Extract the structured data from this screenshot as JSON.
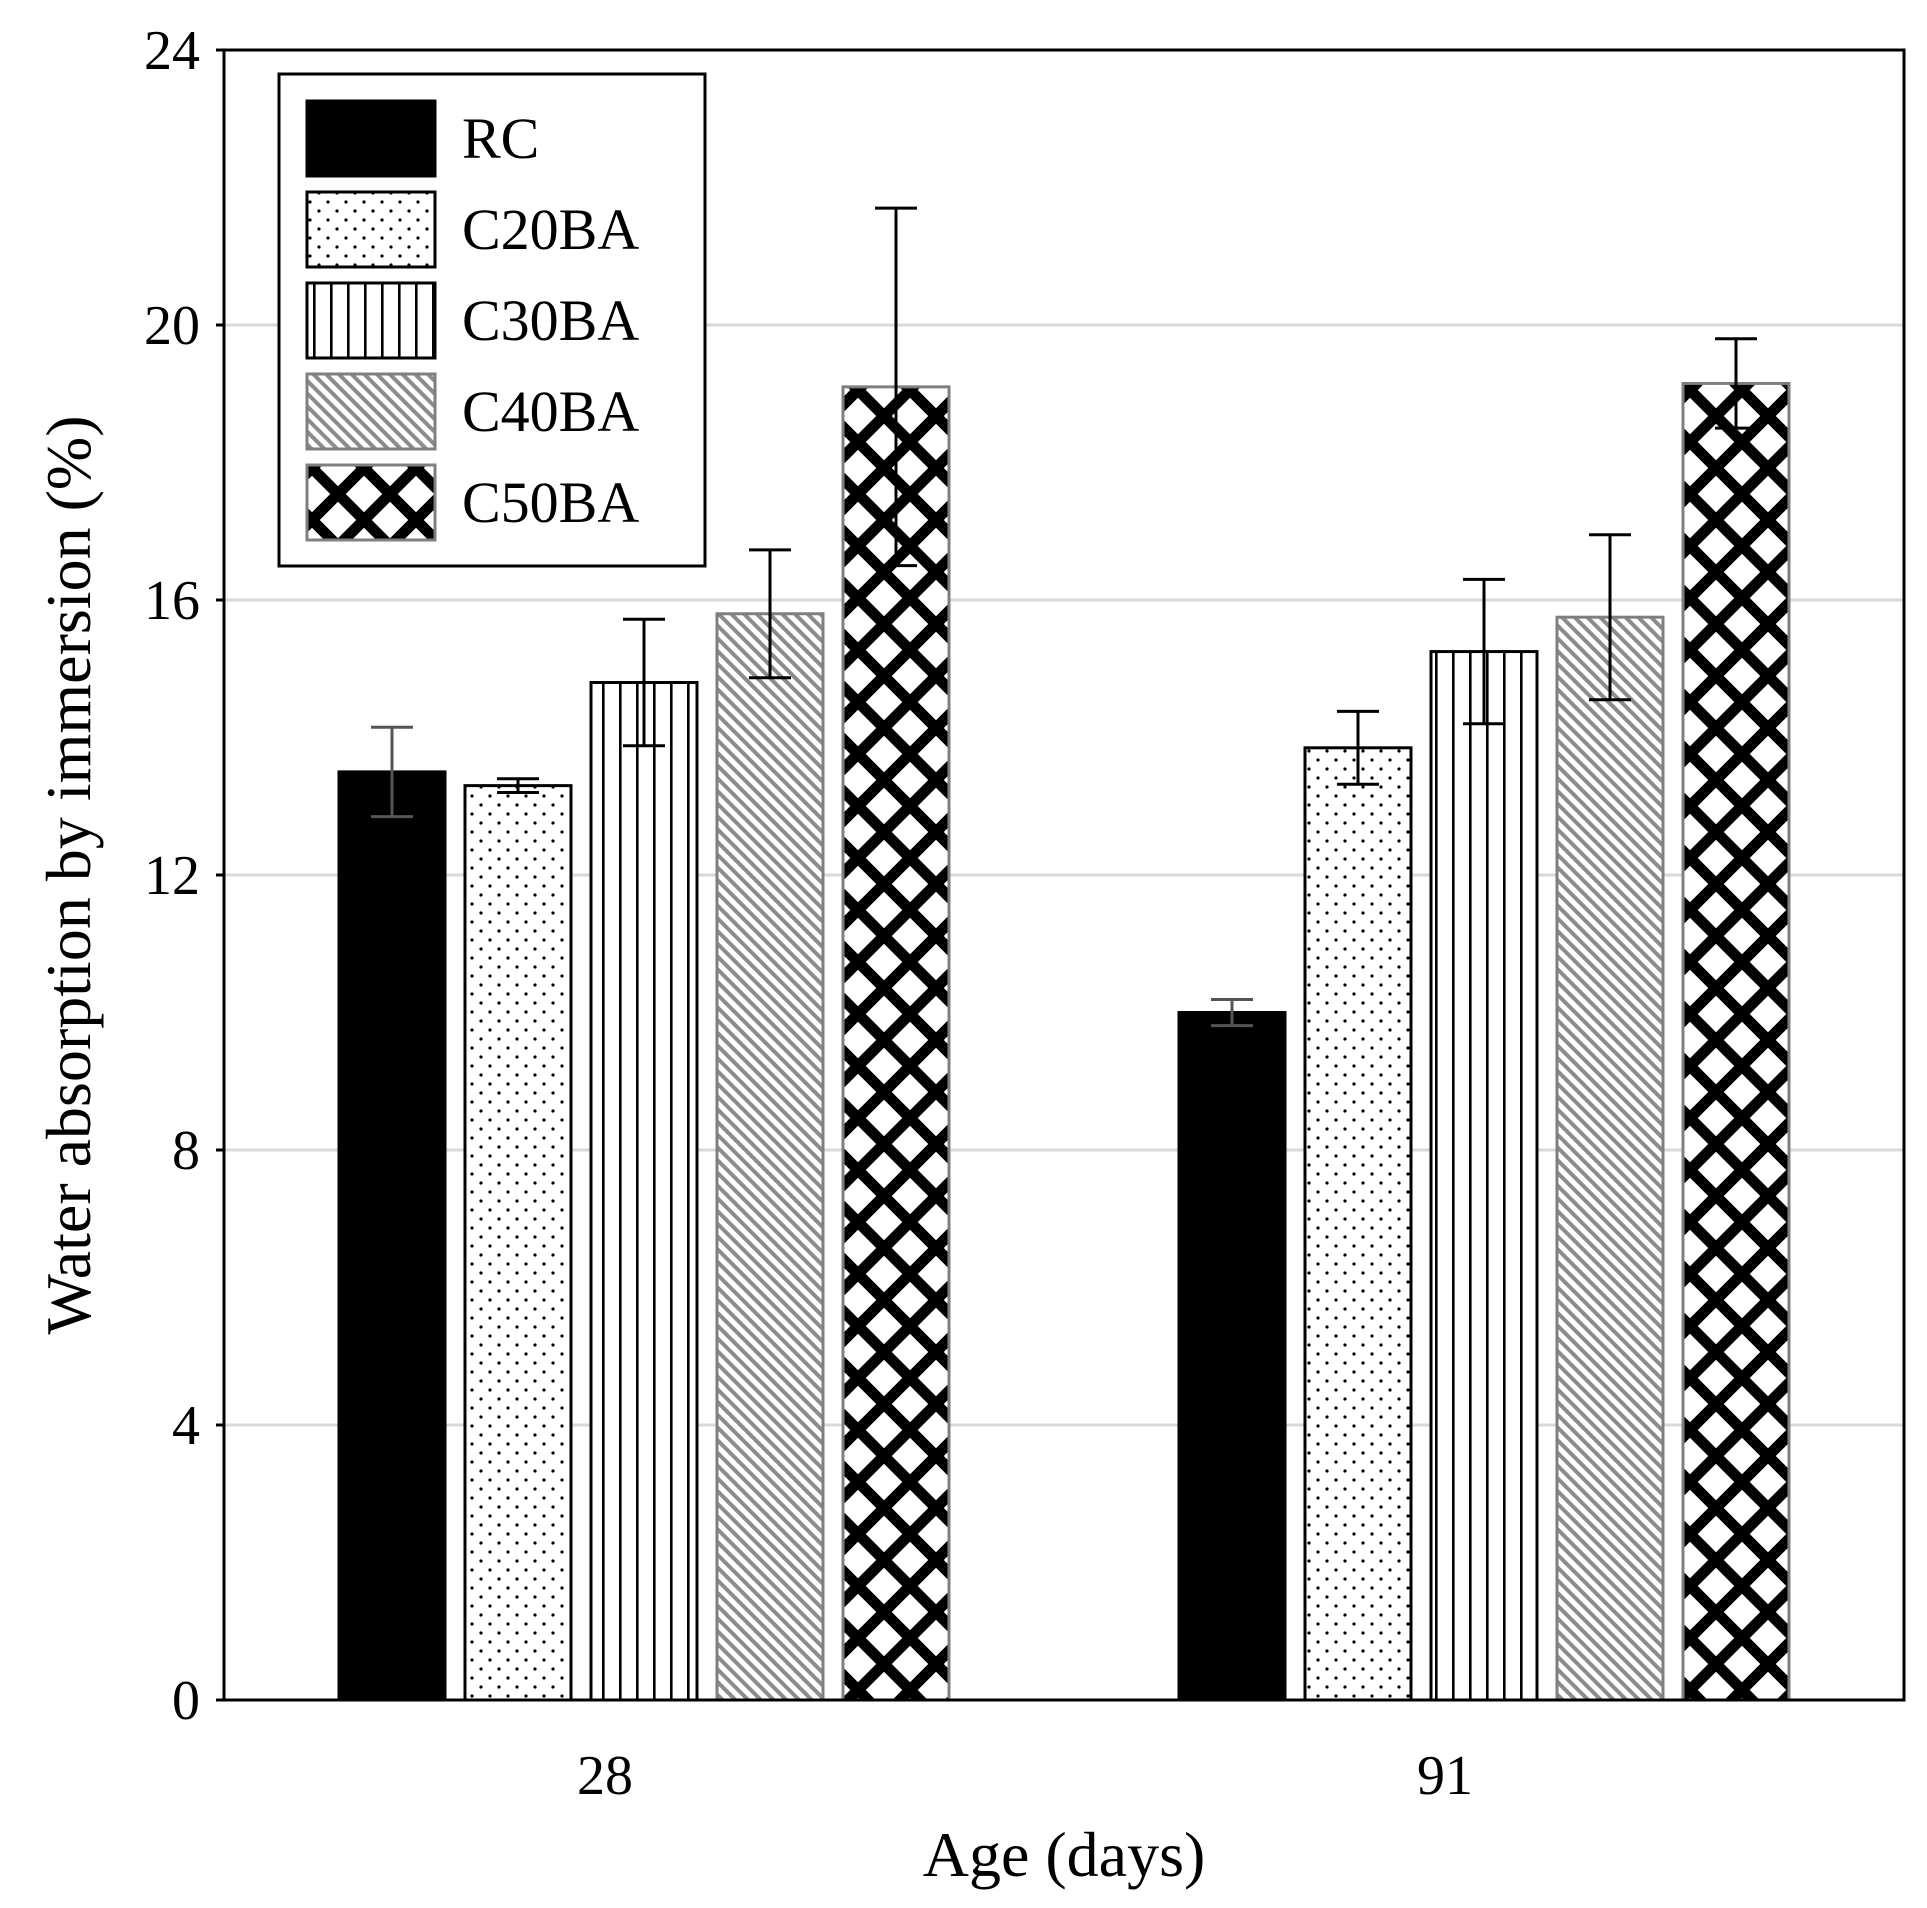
{
  "chart_data": {
    "type": "bar",
    "xlabel": "Age (days)",
    "ylabel": "Water absorption by immersion (%)",
    "ylim": [
      0,
      24
    ],
    "yticks": [
      0,
      4,
      8,
      12,
      16,
      20,
      24
    ],
    "grid": true,
    "legend_position": "top-left",
    "categories": [
      "28",
      "91"
    ],
    "series": [
      {
        "name": "RC",
        "pattern": "solid-black",
        "values": [
          13.5,
          10.0
        ],
        "errors": [
          0.65,
          0.19
        ]
      },
      {
        "name": "C20BA",
        "pattern": "dots",
        "values": [
          13.3,
          13.85
        ],
        "errors": [
          0.1,
          0.53
        ]
      },
      {
        "name": "C30BA",
        "pattern": "vertical-lines",
        "values": [
          14.8,
          15.25
        ],
        "errors": [
          0.92,
          1.05
        ]
      },
      {
        "name": "C40BA",
        "pattern": "diagonal-hatch",
        "values": [
          15.8,
          15.75
        ],
        "errors": [
          0.93,
          1.2
        ]
      },
      {
        "name": "C50BA",
        "pattern": "diamond-cross",
        "values": [
          19.1,
          19.15
        ],
        "errors": [
          2.6,
          0.65
        ]
      }
    ],
    "colors": {
      "axis": "#000000",
      "grid": "#d9d9d9",
      "bar_edge": "#000000",
      "bar_edge_light": "#7f7f7f",
      "hatch": "#8c8c8c",
      "error_bar_light": "#555555"
    }
  }
}
